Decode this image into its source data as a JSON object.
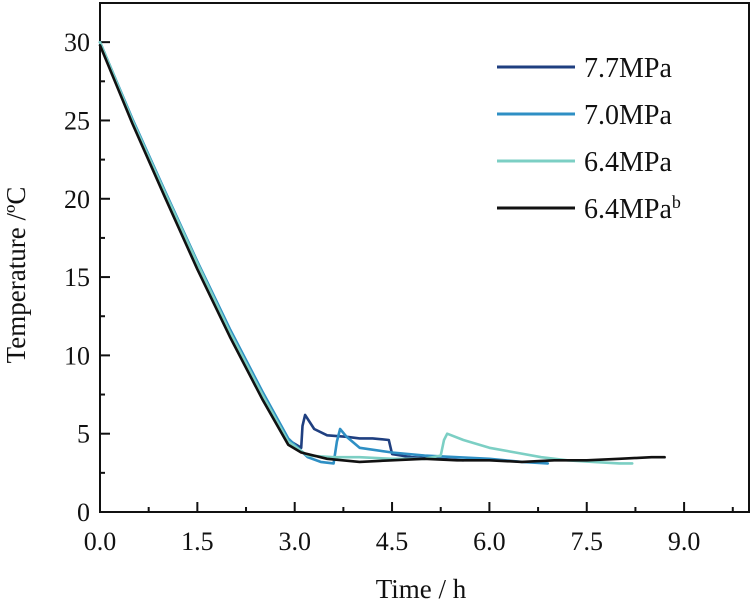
{
  "chart_data": {
    "type": "line",
    "title": "",
    "xlabel": "Time / h",
    "ylabel": "Temperature /ºC",
    "xlim": [
      0,
      10.0
    ],
    "ylim": [
      0,
      32.5
    ],
    "xticks": [
      0.0,
      1.5,
      3.0,
      4.5,
      6.0,
      7.5,
      9.0
    ],
    "xtick_labels": [
      "0.0",
      "1.5",
      "3.0",
      "4.5",
      "6.0",
      "7.5",
      "9.0"
    ],
    "yticks": [
      0,
      5,
      10,
      15,
      20,
      25,
      30
    ],
    "ytick_labels": [
      "0",
      "5",
      "10",
      "15",
      "20",
      "25",
      "30"
    ],
    "legend_position": "top-right",
    "series": [
      {
        "name": "7.7MPa",
        "color": "#1f3f80",
        "x": [
          0,
          0.5,
          1.0,
          1.5,
          2.0,
          2.5,
          2.9,
          3.1,
          3.12,
          3.16,
          3.3,
          3.5,
          3.8,
          4.0,
          4.2,
          4.45,
          4.5,
          4.8,
          5.2,
          5.6
        ],
        "y": [
          30.0,
          25.0,
          20.4,
          15.9,
          11.6,
          7.6,
          4.6,
          4.1,
          5.5,
          6.2,
          5.3,
          4.9,
          4.8,
          4.7,
          4.7,
          4.6,
          3.7,
          3.5,
          3.4,
          3.3
        ]
      },
      {
        "name": "7.0MPa",
        "color": "#2e8fc4",
        "x": [
          0,
          0.5,
          1.0,
          1.5,
          2.0,
          2.5,
          2.9,
          3.2,
          3.4,
          3.6,
          3.65,
          3.7,
          3.8,
          4.0,
          4.5,
          5.0,
          5.5,
          6.0,
          6.5,
          6.9
        ],
        "y": [
          30.0,
          25.1,
          20.5,
          16.0,
          11.7,
          7.7,
          4.7,
          3.5,
          3.2,
          3.1,
          4.5,
          5.3,
          4.8,
          4.1,
          3.8,
          3.6,
          3.5,
          3.4,
          3.2,
          3.1
        ]
      },
      {
        "name": "6.4MPa",
        "color": "#7ccfc4",
        "x": [
          0,
          0.5,
          1.0,
          1.5,
          2.0,
          2.5,
          2.9,
          3.2,
          3.6,
          4.0,
          4.5,
          5.0,
          5.25,
          5.3,
          5.35,
          5.6,
          6.0,
          6.4,
          6.8,
          7.2,
          7.6,
          8.0,
          8.2
        ],
        "y": [
          30.0,
          25.0,
          20.4,
          15.9,
          11.5,
          7.5,
          4.5,
          3.6,
          3.5,
          3.5,
          3.4,
          3.4,
          3.6,
          4.6,
          5.0,
          4.6,
          4.1,
          3.8,
          3.5,
          3.3,
          3.2,
          3.1,
          3.1
        ]
      },
      {
        "name": "6.4MPa",
        "name_superscript": "b",
        "color": "#111111",
        "x": [
          0,
          0.5,
          1.0,
          1.5,
          2.0,
          2.5,
          2.9,
          3.1,
          3.5,
          4.0,
          4.5,
          5.0,
          5.5,
          6.0,
          6.5,
          7.0,
          7.5,
          8.0,
          8.5,
          8.7
        ],
        "y": [
          29.8,
          24.8,
          20.1,
          15.5,
          11.2,
          7.2,
          4.3,
          3.8,
          3.4,
          3.2,
          3.3,
          3.4,
          3.3,
          3.3,
          3.2,
          3.3,
          3.3,
          3.4,
          3.5,
          3.5
        ]
      }
    ]
  }
}
